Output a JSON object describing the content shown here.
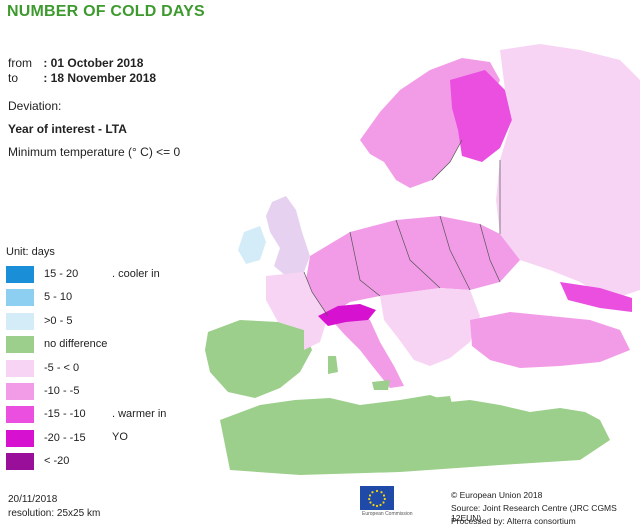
{
  "title": "NUMBER OF COLD DAYS",
  "period": {
    "from_label": "from",
    "from_value": ": 01 October 2018",
    "to_label": "to",
    "to_value": ": 18 November 2018"
  },
  "deviation_label": "Deviation:",
  "year_of_interest": "Year of interest - LTA",
  "min_temp": "Minimum temperature (° C) <= 0",
  "legend": {
    "unit": "Unit:  days",
    "items": [
      {
        "label": "15 - 20",
        "color": "#1a8fd8"
      },
      {
        "label": "5 - 10",
        "color": "#8ccff0"
      },
      {
        "label": ">0 - 5",
        "color": "#d4ecf8"
      },
      {
        "label": "no difference",
        "color": "#9ccf8b"
      },
      {
        "label": "-5 - < 0",
        "color": "#f8d4f4"
      },
      {
        "label": "-10 - -5",
        "color": "#f29ce8"
      },
      {
        "label": "-15 - -10",
        "color": "#ea4fe0"
      },
      {
        "label": "-20 - -15",
        "color": "#d611cf"
      },
      {
        "label": "< -20",
        "color": "#9a0f9a"
      }
    ],
    "note_cool": ". cooler in",
    "note_warm": ". warmer in",
    "note_you": "YO"
  },
  "footer": {
    "date": "20/11/2018",
    "resolution": "resolution:  25x25 km",
    "eu_caption": "European Commission",
    "copyright": "© European Union 2018",
    "source": "Source: Joint Research Centre (JRC CGMS 12EUN)",
    "processed": "Processed by: Alterra consortium"
  },
  "colors": {
    "title": "#3e9a2f",
    "land_green": "#9ccf8b",
    "pink_light": "#f8d4f4",
    "pink_mid": "#f29ce8",
    "magenta": "#ea4fe0",
    "sea": "#ffffff"
  }
}
